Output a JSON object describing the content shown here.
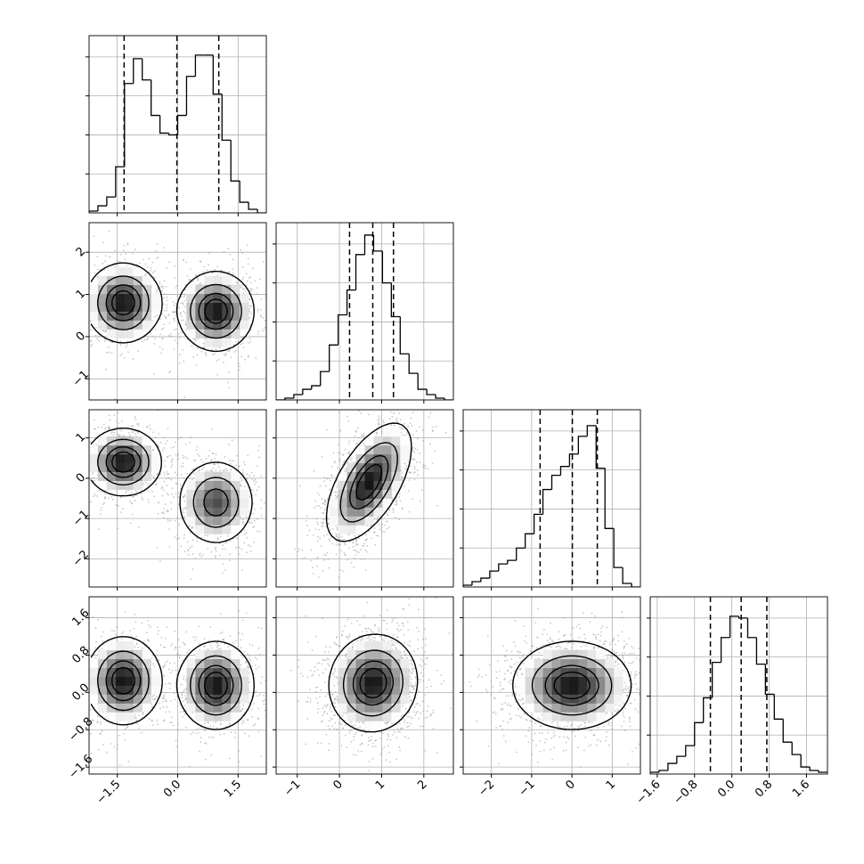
{
  "colors": {
    "ink": "#000000",
    "grid": "#b0b0b0",
    "scatter": "#999999",
    "density": "#000000",
    "background": "#ffffff"
  },
  "chart_data": {
    "type": "corner",
    "grid": true,
    "n_params": 4,
    "variables": [
      {
        "name": "",
        "range": [
          -2.2,
          2.2
        ],
        "ticks": [
          -1.5,
          0.0,
          1.5
        ],
        "tick_labels": [
          "−1.5",
          "0.0",
          "1.5"
        ]
      },
      {
        "name": "",
        "range": [
          -1.5,
          2.7
        ],
        "ticks": [
          -1,
          0,
          1,
          2
        ],
        "tick_labels": [
          "−1",
          "0",
          "1",
          "2"
        ]
      },
      {
        "name": "",
        "range": [
          -2.7,
          1.7
        ],
        "ticks": [
          -2,
          -1,
          0,
          1
        ],
        "tick_labels": [
          "−2",
          "−1",
          "0",
          "1"
        ]
      },
      {
        "name": "",
        "range": [
          -1.75,
          2.05
        ],
        "ticks": [
          -1.6,
          -0.8,
          0.0,
          0.8,
          1.6
        ],
        "tick_labels": [
          "−1.6",
          "−0.8",
          "0.0",
          "0.8",
          "1.6"
        ]
      }
    ],
    "histograms": [
      {
        "variable": 0,
        "quantiles": [
          -1.33,
          -0.02,
          1.02
        ],
        "hist_ylim": [
          0,
          1.0
        ],
        "bins": [
          -2.2,
          -1.98,
          -1.76,
          -1.54,
          -1.32,
          -1.1,
          -0.88,
          -0.66,
          -0.44,
          -0.22,
          0.0,
          0.22,
          0.44,
          0.66,
          0.88,
          1.1,
          1.32,
          1.54,
          1.76,
          1.98,
          2.2
        ],
        "counts": [
          0.01,
          0.04,
          0.09,
          0.26,
          0.73,
          0.87,
          0.75,
          0.55,
          0.45,
          0.44,
          0.55,
          0.77,
          0.89,
          0.89,
          0.67,
          0.41,
          0.18,
          0.06,
          0.02,
          0.0
        ]
      },
      {
        "variable": 1,
        "quantiles": [
          0.24,
          0.79,
          1.28
        ],
        "hist_ylim": [
          0,
          1.0
        ],
        "bins": [
          -1.5,
          -1.29,
          -1.08,
          -0.87,
          -0.66,
          -0.45,
          -0.24,
          -0.03,
          0.18,
          0.39,
          0.6,
          0.81,
          1.02,
          1.23,
          1.44,
          1.65,
          1.86,
          2.07,
          2.28,
          2.49,
          2.7
        ],
        "counts": [
          0.0,
          0.01,
          0.03,
          0.06,
          0.08,
          0.16,
          0.31,
          0.48,
          0.62,
          0.82,
          0.93,
          0.84,
          0.66,
          0.47,
          0.26,
          0.15,
          0.06,
          0.03,
          0.01,
          0.0
        ]
      },
      {
        "variable": 2,
        "quantiles": [
          -0.79,
          0.01,
          0.63
        ],
        "hist_ylim": [
          0,
          1.0
        ],
        "bins": [
          -2.7,
          -2.48,
          -2.26,
          -2.04,
          -1.82,
          -1.6,
          -1.38,
          -1.16,
          -0.94,
          -0.72,
          -0.5,
          -0.28,
          -0.06,
          0.16,
          0.38,
          0.6,
          0.82,
          1.04,
          1.26,
          1.48,
          1.7
        ],
        "counts": [
          0.01,
          0.03,
          0.05,
          0.09,
          0.13,
          0.15,
          0.22,
          0.3,
          0.41,
          0.55,
          0.63,
          0.68,
          0.75,
          0.85,
          0.91,
          0.67,
          0.33,
          0.11,
          0.02,
          0.0
        ]
      },
      {
        "variable": 3,
        "quantiles": [
          -0.46,
          0.2,
          0.75
        ],
        "hist_ylim": [
          0,
          1.0
        ],
        "bins": [
          -1.75,
          -1.56,
          -1.37,
          -1.18,
          -0.99,
          -0.8,
          -0.61,
          -0.42,
          -0.23,
          -0.04,
          0.15,
          0.34,
          0.53,
          0.72,
          0.91,
          1.1,
          1.29,
          1.48,
          1.67,
          1.86,
          2.05
        ],
        "counts": [
          0.01,
          0.02,
          0.06,
          0.1,
          0.16,
          0.29,
          0.43,
          0.63,
          0.77,
          0.89,
          0.88,
          0.77,
          0.62,
          0.45,
          0.31,
          0.18,
          0.11,
          0.04,
          0.02,
          0.01
        ]
      }
    ],
    "joint_densities": [
      {
        "x": 0,
        "y": 1,
        "components": [
          {
            "w": 0.5,
            "mx": -1.35,
            "my": 0.8,
            "sx": 0.45,
            "sy": 0.45,
            "rho": 0.0
          },
          {
            "w": 0.5,
            "mx": 0.95,
            "my": 0.6,
            "sx": 0.45,
            "sy": 0.45,
            "rho": 0.0
          }
        ]
      },
      {
        "x": 0,
        "y": 2,
        "components": [
          {
            "w": 0.5,
            "mx": -1.35,
            "my": 0.4,
            "sx": 0.45,
            "sy": 0.4,
            "rho": 0.0
          },
          {
            "w": 0.5,
            "mx": 0.95,
            "my": -0.6,
            "sx": 0.45,
            "sy": 0.5,
            "rho": 0.0
          }
        ]
      },
      {
        "x": 0,
        "y": 3,
        "components": [
          {
            "w": 0.5,
            "mx": -1.35,
            "my": 0.25,
            "sx": 0.45,
            "sy": 0.45,
            "rho": 0.0
          },
          {
            "w": 0.5,
            "mx": 0.95,
            "my": 0.15,
            "sx": 0.45,
            "sy": 0.45,
            "rho": 0.0
          }
        ]
      },
      {
        "x": 1,
        "y": 2,
        "components": [
          {
            "w": 1.0,
            "mx": 0.7,
            "my": -0.1,
            "sx": 0.48,
            "sy": 0.7,
            "rho": 0.6
          }
        ]
      },
      {
        "x": 1,
        "y": 3,
        "components": [
          {
            "w": 1.0,
            "mx": 0.8,
            "my": 0.2,
            "sx": 0.5,
            "sy": 0.5,
            "rho": 0.05
          }
        ]
      },
      {
        "x": 2,
        "y": 3,
        "components": [
          {
            "w": 1.0,
            "mx": 0.0,
            "my": 0.15,
            "sx": 0.7,
            "sy": 0.45,
            "rho": 0.0
          }
        ]
      }
    ],
    "contour_levels": [
      0.118,
      0.393,
      0.675,
      0.865
    ]
  }
}
